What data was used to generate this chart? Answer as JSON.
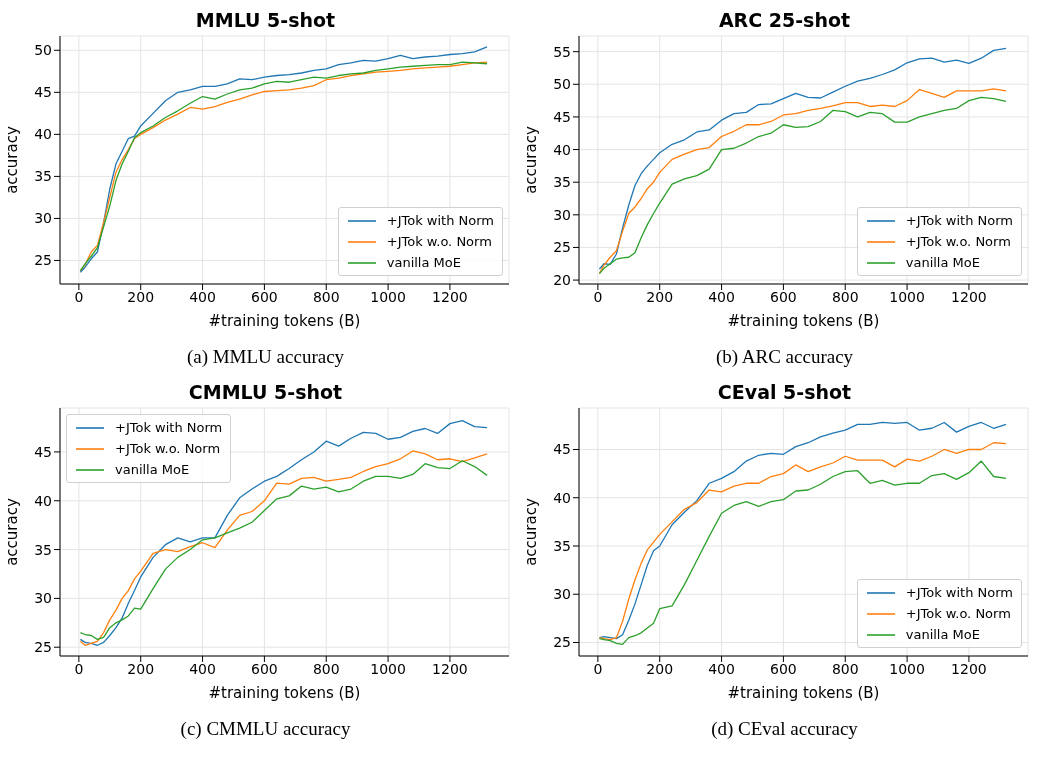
{
  "chart_data": [
    {
      "type": "line",
      "title": "MMLU 5-shot",
      "xlabel": "#training tokens (B)",
      "ylabel": "accuracy",
      "annotations": [
        "(a) MMLU accuracy"
      ],
      "legend": "bottom right",
      "grid": true,
      "xlim": [
        -61,
        1391
      ],
      "xticks": [
        0,
        200,
        400,
        600,
        800,
        1000,
        1200
      ],
      "ylim": [
        22.2,
        51.7
      ],
      "yticks": [
        25,
        30,
        35,
        40,
        45,
        50
      ],
      "x": [
        5,
        20,
        40,
        60,
        80,
        100,
        120,
        140,
        160,
        180,
        200,
        240,
        280,
        320,
        360,
        400,
        440,
        480,
        520,
        560,
        600,
        640,
        680,
        720,
        760,
        800,
        840,
        880,
        920,
        960,
        1000,
        1040,
        1080,
        1120,
        1160,
        1200,
        1240,
        1280,
        1320
      ],
      "series": [
        {
          "name": "+JTok with Norm",
          "color": "#1f77b4",
          "values": [
            23.6,
            24.2,
            25.2,
            26,
            29.5,
            33.5,
            36.5,
            38,
            39.5,
            39.8,
            41,
            42.5,
            44,
            45,
            45.3,
            45.7,
            45.7,
            46,
            46.6,
            46.5,
            46.8,
            47,
            47.1,
            47.3,
            47.6,
            47.8,
            48.3,
            48.5,
            48.8,
            48.7,
            49,
            49.4,
            49,
            49.2,
            49.3,
            49.5,
            49.6,
            49.8,
            50.4
          ]
        },
        {
          "name": "+JTok w.o. Norm",
          "color": "#ff7f0e",
          "values": [
            23.8,
            24.5,
            26,
            26.8,
            29.5,
            32.5,
            35.5,
            37,
            38.2,
            39.5,
            40,
            40.8,
            41.7,
            42.4,
            43.2,
            43,
            43.3,
            43.8,
            44.2,
            44.7,
            45.1,
            45.2,
            45.3,
            45.5,
            45.8,
            46.5,
            46.7,
            47,
            47.2,
            47.4,
            47.5,
            47.6,
            47.8,
            47.9,
            48,
            48.1,
            48.3,
            48.5,
            48.6
          ]
        },
        {
          "name": "vanilla MoE",
          "color": "#2ca02c",
          "values": [
            23.8,
            24.6,
            25.5,
            26.5,
            29,
            31.5,
            34.5,
            36.5,
            38,
            39.6,
            40.2,
            41,
            42,
            42.8,
            43.7,
            44.5,
            44.2,
            44.8,
            45.3,
            45.5,
            46,
            46.3,
            46.2,
            46.5,
            46.8,
            46.7,
            47,
            47.2,
            47.3,
            47.6,
            47.8,
            48,
            48.1,
            48.2,
            48.3,
            48.3,
            48.6,
            48.5,
            48.4
          ]
        }
      ]
    },
    {
      "type": "line",
      "title": "ARC 25-shot",
      "xlabel": "#training tokens (B)",
      "ylabel": "accuracy",
      "annotations": [
        "(b) ARC accuracy"
      ],
      "legend": "bottom right",
      "grid": true,
      "xlim": [
        -61,
        1391
      ],
      "xticks": [
        0,
        200,
        400,
        600,
        800,
        1000,
        1200
      ],
      "ylim": [
        19.4,
        57.4
      ],
      "yticks": [
        20,
        25,
        30,
        35,
        40,
        45,
        50,
        55
      ],
      "x": [
        5,
        20,
        40,
        60,
        80,
        100,
        120,
        140,
        160,
        180,
        200,
        240,
        280,
        320,
        360,
        400,
        440,
        480,
        520,
        560,
        600,
        640,
        680,
        720,
        760,
        800,
        840,
        880,
        920,
        960,
        1000,
        1040,
        1080,
        1120,
        1160,
        1200,
        1240,
        1280,
        1320
      ],
      "series": [
        {
          "name": "+JTok with Norm",
          "color": "#1f77b4",
          "values": [
            21.7,
            22.5,
            22.4,
            24,
            28,
            31.5,
            34.5,
            36.3,
            37.5,
            38.5,
            39.5,
            40.8,
            41.5,
            42.7,
            43,
            44.5,
            45.5,
            45.7,
            46.9,
            47,
            47.8,
            48.6,
            48,
            47.9,
            48.8,
            49.7,
            50.5,
            50.9,
            51.5,
            52.2,
            53.3,
            53.9,
            54,
            53.4,
            53.7,
            53.2,
            54,
            55.2,
            55.5
          ]
        },
        {
          "name": "+JTok w.o. Norm",
          "color": "#ff7f0e",
          "values": [
            21,
            22.3,
            23.5,
            24.5,
            27.5,
            30.2,
            31.2,
            32.5,
            34,
            35,
            36.5,
            38.5,
            39.3,
            40,
            40.3,
            42,
            42.8,
            43.8,
            43.8,
            44.3,
            45.3,
            45.5,
            46,
            46.3,
            46.7,
            47.2,
            47.2,
            46.6,
            46.8,
            46.6,
            47.5,
            49.2,
            48.6,
            48,
            49,
            49,
            49,
            49.3,
            49
          ]
        },
        {
          "name": "vanilla MoE",
          "color": "#2ca02c",
          "values": [
            21,
            21.8,
            22.5,
            23.2,
            23.4,
            23.5,
            24.2,
            26.5,
            28.5,
            30.2,
            31.8,
            34.7,
            35.5,
            36,
            37,
            40,
            40.2,
            41,
            42,
            42.5,
            43.8,
            43.4,
            43.5,
            44.3,
            46,
            45.8,
            45,
            45.7,
            45.5,
            44.2,
            44.2,
            45,
            45.5,
            46,
            46.3,
            47.5,
            48,
            47.8,
            47.4
          ]
        }
      ]
    },
    {
      "type": "line",
      "title": "CMMLU 5-shot",
      "xlabel": "#training tokens (B)",
      "ylabel": "accuracy",
      "annotations": [
        "(c) CMMLU accuracy"
      ],
      "legend": "top left",
      "grid": true,
      "xlim": [
        -61,
        1391
      ],
      "xticks": [
        0,
        200,
        400,
        600,
        800,
        1000,
        1200
      ],
      "ylim": [
        24.1,
        49.5
      ],
      "yticks": [
        25,
        30,
        35,
        40,
        45
      ],
      "x": [
        5,
        20,
        40,
        60,
        80,
        100,
        120,
        140,
        160,
        180,
        200,
        240,
        280,
        320,
        360,
        400,
        440,
        480,
        520,
        560,
        600,
        640,
        680,
        720,
        760,
        800,
        840,
        880,
        920,
        960,
        1000,
        1040,
        1080,
        1120,
        1160,
        1200,
        1240,
        1280,
        1320
      ],
      "series": [
        {
          "name": "+JTok with Norm",
          "color": "#1f77b4",
          "values": [
            25.8,
            25.5,
            25.4,
            25.2,
            25.5,
            26.2,
            27,
            28,
            29.5,
            30.8,
            32.2,
            34.2,
            35.5,
            36.2,
            35.8,
            36.2,
            36.2,
            38.5,
            40.3,
            41.2,
            42,
            42.5,
            43.3,
            44.2,
            45,
            46.1,
            45.6,
            46.4,
            47,
            46.9,
            46.3,
            46.5,
            47.1,
            47.4,
            46.9,
            47.9,
            48.2,
            47.6,
            47.5
          ]
        },
        {
          "name": "+JTok w.o. Norm",
          "color": "#ff7f0e",
          "values": [
            25.6,
            25.2,
            25.4,
            25.6,
            26.5,
            27.8,
            28.8,
            30,
            30.8,
            32,
            32.8,
            34.6,
            35,
            34.8,
            35.3,
            35.7,
            35.2,
            37,
            38.5,
            38.9,
            40,
            41.8,
            41.7,
            42.3,
            42.4,
            42,
            42.2,
            42.4,
            43,
            43.5,
            43.8,
            44.3,
            45.1,
            44.8,
            44.2,
            44.3,
            44,
            44.4,
            44.8
          ]
        },
        {
          "name": "vanilla MoE",
          "color": "#2ca02c",
          "values": [
            26.5,
            26.3,
            26.2,
            25.8,
            26,
            27,
            27.5,
            27.8,
            28.2,
            29,
            28.9,
            31,
            33,
            34.2,
            35,
            36,
            36.2,
            36.7,
            37.2,
            37.8,
            39,
            40.2,
            40.5,
            41.5,
            41.2,
            41.4,
            40.9,
            41.2,
            42,
            42.5,
            42.5,
            42.3,
            42.7,
            43.8,
            43.4,
            43.3,
            44.1,
            43.5,
            42.6
          ]
        }
      ]
    },
    {
      "type": "line",
      "title": "CEval 5-shot",
      "xlabel": "#training tokens (B)",
      "ylabel": "accuracy",
      "annotations": [
        "(d) CEval accuracy"
      ],
      "legend": "bottom right",
      "grid": true,
      "xlim": [
        -61,
        1391
      ],
      "xticks": [
        0,
        200,
        400,
        600,
        800,
        1000,
        1200
      ],
      "ylim": [
        23.6,
        49.3
      ],
      "yticks": [
        25,
        30,
        35,
        40,
        45
      ],
      "x": [
        5,
        20,
        40,
        60,
        80,
        100,
        120,
        140,
        160,
        180,
        200,
        240,
        280,
        320,
        360,
        400,
        440,
        480,
        520,
        560,
        600,
        640,
        680,
        720,
        760,
        800,
        840,
        880,
        920,
        960,
        1000,
        1040,
        1080,
        1120,
        1160,
        1200,
        1240,
        1280,
        1320
      ],
      "series": [
        {
          "name": "+JTok with Norm",
          "color": "#1f77b4",
          "values": [
            25.5,
            25.6,
            25.5,
            25.4,
            25.8,
            27.3,
            29,
            31,
            33,
            34.5,
            35,
            37.2,
            38.5,
            39.7,
            41.5,
            42,
            42.7,
            43.8,
            44.4,
            44.6,
            44.5,
            45.3,
            45.7,
            46.3,
            46.7,
            47,
            47.6,
            47.6,
            47.8,
            47.7,
            47.8,
            47,
            47.2,
            47.8,
            46.8,
            47.4,
            47.8,
            47.2,
            47.6
          ]
        },
        {
          "name": "+JTok w.o. Norm",
          "color": "#ff7f0e",
          "values": [
            25.5,
            25.4,
            25.3,
            25.5,
            27.2,
            29.5,
            31.5,
            33.2,
            34.6,
            35.4,
            36.2,
            37.5,
            38.8,
            39.5,
            40.8,
            40.6,
            41.2,
            41.5,
            41.5,
            42.2,
            42.5,
            43.4,
            42.7,
            43.2,
            43.6,
            44.3,
            43.9,
            43.9,
            43.9,
            43.2,
            44,
            43.8,
            44.3,
            45,
            44.6,
            45,
            45,
            45.7,
            45.6
          ]
        },
        {
          "name": "vanilla MoE",
          "color": "#2ca02c",
          "values": [
            25.4,
            25.3,
            25.2,
            24.9,
            24.8,
            25.5,
            25.7,
            26,
            26.5,
            27,
            28.5,
            28.8,
            31,
            33.5,
            36,
            38.4,
            39.2,
            39.6,
            39.1,
            39.6,
            39.8,
            40.7,
            40.8,
            41.4,
            42.2,
            42.7,
            42.8,
            41.5,
            41.8,
            41.3,
            41.5,
            41.5,
            42.3,
            42.5,
            41.9,
            42.6,
            43.8,
            42.2,
            42
          ]
        }
      ]
    }
  ]
}
